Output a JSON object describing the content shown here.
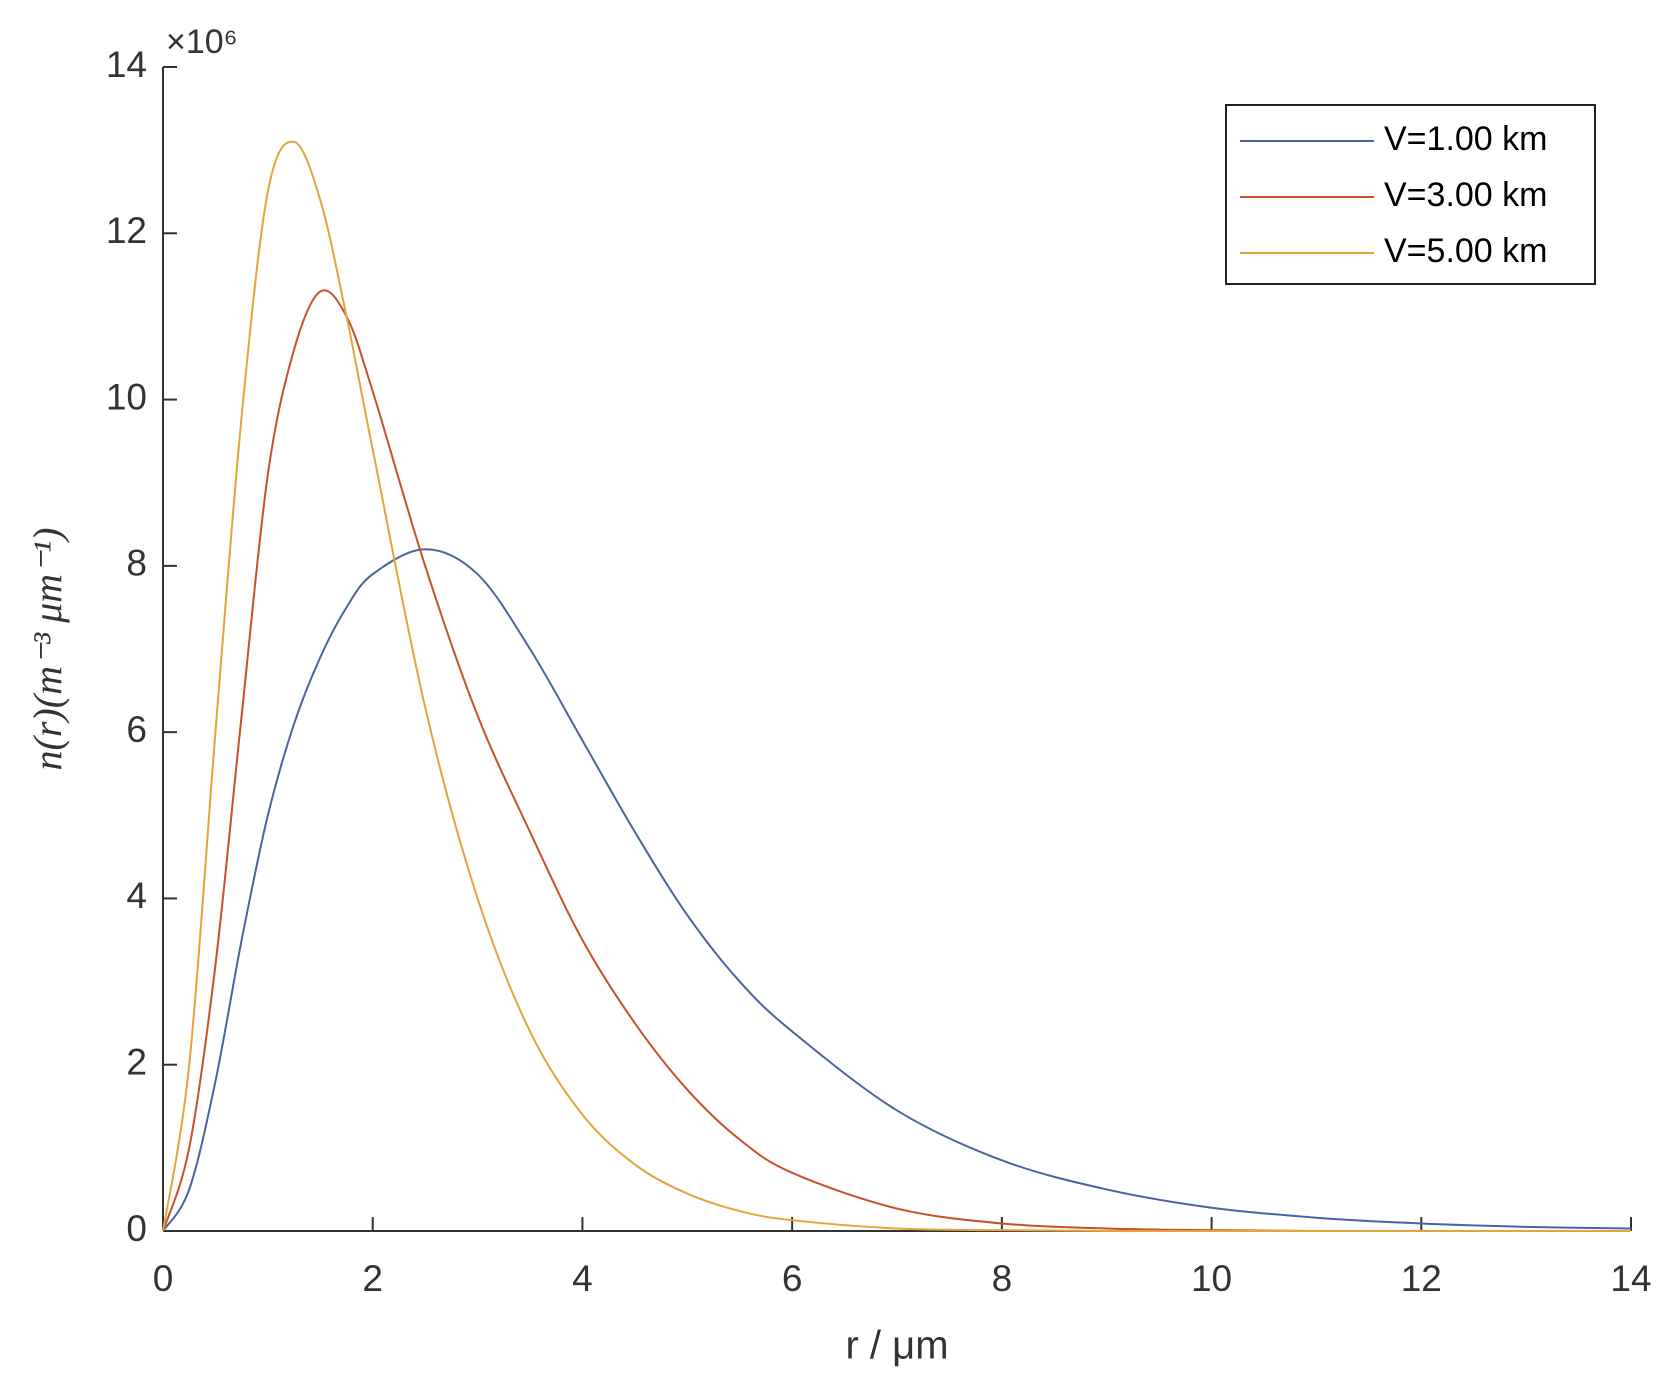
{
  "chart_data": {
    "type": "line",
    "x_label": "r / μm",
    "y_label": "n(r)(m⁻³ μm⁻¹)",
    "y_multiplier": "×10⁶",
    "x": [
      0,
      0.25,
      0.5,
      0.75,
      1,
      1.25,
      1.5,
      1.75,
      2,
      2.5,
      3,
      3.5,
      4,
      4.5,
      5,
      5.5,
      6,
      7,
      8,
      9,
      10,
      11,
      12,
      13,
      14
    ],
    "series": [
      {
        "name": "V=1.00 km",
        "color": "#4a64a0",
        "values": [
          0,
          0.5,
          1.8,
          3.5,
          5.0,
          6.1,
          6.9,
          7.5,
          7.9,
          8.2,
          7.9,
          7.0,
          5.9,
          4.8,
          3.8,
          3.0,
          2.4,
          1.45,
          0.85,
          0.5,
          0.28,
          0.16,
          0.09,
          0.05,
          0.03
        ]
      },
      {
        "name": "V=3.00 km",
        "color": "#c8502a",
        "values": [
          0,
          1.0,
          3.2,
          6.2,
          9.1,
          10.6,
          11.3,
          11.0,
          10.1,
          8.0,
          6.2,
          4.8,
          3.5,
          2.5,
          1.7,
          1.1,
          0.7,
          0.27,
          0.09,
          0.03,
          0.01,
          0,
          0,
          0,
          0
        ]
      },
      {
        "name": "V=5.00 km",
        "color": "#e3a53a",
        "values": [
          0,
          2.0,
          6.0,
          9.8,
          12.5,
          13.1,
          12.4,
          11.0,
          9.4,
          6.3,
          4.0,
          2.4,
          1.4,
          0.8,
          0.45,
          0.24,
          0.13,
          0.03,
          0.01,
          0,
          0,
          0,
          0,
          0,
          0
        ]
      }
    ],
    "xlim": [
      0,
      14
    ],
    "ylim": [
      0,
      14
    ],
    "xticks": [
      0,
      2,
      4,
      6,
      8,
      10,
      12,
      14
    ],
    "yticks": [
      0,
      2,
      4,
      6,
      8,
      10,
      12,
      14
    ],
    "grid": false,
    "legend": "top-right"
  }
}
